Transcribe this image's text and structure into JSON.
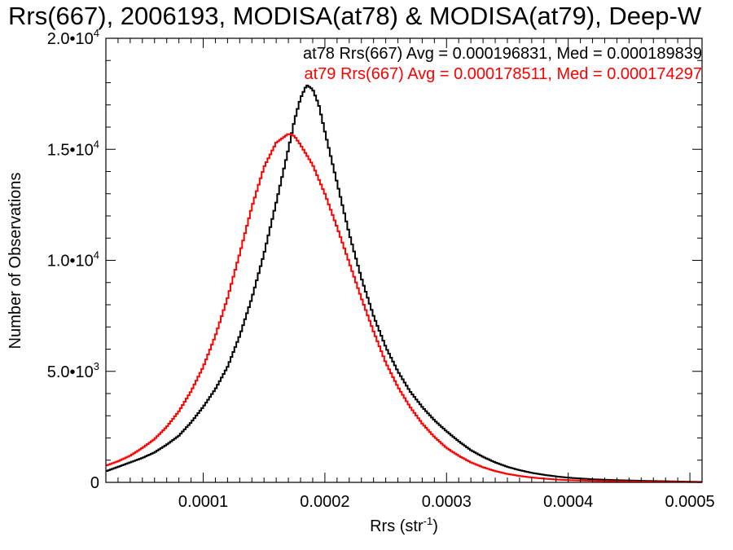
{
  "chart_data": {
    "type": "line",
    "title": "Rrs(667), 2006193, MODISA(at78) & MODISA(at79), Deep-W",
    "xlabel": "Rrs (str",
    "xlabel_sup": "-1",
    "xlabel_end": ")",
    "ylabel": "Number of Observations",
    "xlim": [
      2e-05,
      0.00051
    ],
    "ylim": [
      0,
      20000
    ],
    "x_ticks": [
      {
        "value": 0.0001,
        "label": "0.0001"
      },
      {
        "value": 0.0002,
        "label": "0.0002"
      },
      {
        "value": 0.0003,
        "label": "0.0003"
      },
      {
        "value": 0.0004,
        "label": "0.0004"
      },
      {
        "value": 0.0005,
        "label": "0.0005"
      }
    ],
    "y_ticks": [
      {
        "value": 0,
        "mant": "0",
        "exp": ""
      },
      {
        "value": 5000,
        "mant": "5.0•10",
        "exp": "3"
      },
      {
        "value": 10000,
        "mant": "1.0•10",
        "exp": "4"
      },
      {
        "value": 15000,
        "mant": "1.5•10",
        "exp": "4"
      },
      {
        "value": 20000,
        "mant": "2.0•10",
        "exp": "4"
      }
    ],
    "annotations": [
      {
        "text": "at78 Rrs(667) Avg = 0.000196831, Med = 0.000189839",
        "color": "#000000"
      },
      {
        "text": "at79 Rrs(667) Avg = 0.000178511, Med = 0.000174297",
        "color": "#ff0000"
      }
    ],
    "series": [
      {
        "color": "#000000",
        "points": [
          [
            2e-05,
            500
          ],
          [
            3e-05,
            700
          ],
          [
            4e-05,
            900
          ],
          [
            5e-05,
            1100
          ],
          [
            6e-05,
            1350
          ],
          [
            7e-05,
            1700
          ],
          [
            8e-05,
            2100
          ],
          [
            9e-05,
            2700
          ],
          [
            0.0001,
            3400
          ],
          [
            0.00011,
            4200
          ],
          [
            0.00012,
            5200
          ],
          [
            0.00013,
            6600
          ],
          [
            0.00014,
            8300
          ],
          [
            0.00015,
            10300
          ],
          [
            0.00016,
            12600
          ],
          [
            0.00017,
            15000
          ],
          [
            0.000175,
            16300
          ],
          [
            0.00018,
            17300
          ],
          [
            0.000185,
            17900
          ],
          [
            0.00019,
            17700
          ],
          [
            0.000195,
            17000
          ],
          [
            0.0002,
            15800
          ],
          [
            0.00021,
            13500
          ],
          [
            0.00022,
            11200
          ],
          [
            0.00023,
            9200
          ],
          [
            0.00024,
            7500
          ],
          [
            0.00025,
            6100
          ],
          [
            0.00026,
            5000
          ],
          [
            0.00027,
            4100
          ],
          [
            0.00028,
            3400
          ],
          [
            0.00029,
            2800
          ],
          [
            0.0003,
            2300
          ],
          [
            0.00031,
            1850
          ],
          [
            0.00032,
            1450
          ],
          [
            0.00033,
            1150
          ],
          [
            0.00034,
            900
          ],
          [
            0.00035,
            700
          ],
          [
            0.00036,
            550
          ],
          [
            0.00037,
            430
          ],
          [
            0.00038,
            340
          ],
          [
            0.00039,
            270
          ],
          [
            0.0004,
            210
          ],
          [
            0.00042,
            140
          ],
          [
            0.00044,
            100
          ],
          [
            0.00046,
            70
          ],
          [
            0.00048,
            50
          ],
          [
            0.0005,
            30
          ],
          [
            0.00051,
            20
          ]
        ]
      },
      {
        "color": "#ff0000",
        "points": [
          [
            2e-05,
            750
          ],
          [
            3e-05,
            950
          ],
          [
            4e-05,
            1200
          ],
          [
            5e-05,
            1550
          ],
          [
            6e-05,
            1950
          ],
          [
            7e-05,
            2500
          ],
          [
            8e-05,
            3200
          ],
          [
            9e-05,
            4100
          ],
          [
            0.0001,
            5200
          ],
          [
            0.00011,
            6600
          ],
          [
            0.00012,
            8300
          ],
          [
            0.00013,
            10300
          ],
          [
            0.00014,
            12400
          ],
          [
            0.00015,
            14200
          ],
          [
            0.00016,
            15300
          ],
          [
            0.00017,
            15700
          ],
          [
            0.000175,
            15600
          ],
          [
            0.00018,
            15200
          ],
          [
            0.00019,
            14300
          ],
          [
            0.0002,
            13000
          ],
          [
            0.00021,
            11500
          ],
          [
            0.00022,
            9900
          ],
          [
            0.00023,
            8300
          ],
          [
            0.00024,
            6800
          ],
          [
            0.00025,
            5400
          ],
          [
            0.00026,
            4300
          ],
          [
            0.00027,
            3400
          ],
          [
            0.00028,
            2650
          ],
          [
            0.00029,
            2050
          ],
          [
            0.0003,
            1550
          ],
          [
            0.00031,
            1200
          ],
          [
            0.00032,
            900
          ],
          [
            0.00033,
            680
          ],
          [
            0.00034,
            510
          ],
          [
            0.00035,
            380
          ],
          [
            0.00036,
            290
          ],
          [
            0.00037,
            220
          ],
          [
            0.00038,
            170
          ],
          [
            0.00039,
            130
          ],
          [
            0.0004,
            100
          ],
          [
            0.00042,
            70
          ],
          [
            0.00044,
            50
          ],
          [
            0.00046,
            35
          ],
          [
            0.00048,
            25
          ],
          [
            0.0005,
            15
          ],
          [
            0.00051,
            10
          ]
        ]
      }
    ]
  }
}
